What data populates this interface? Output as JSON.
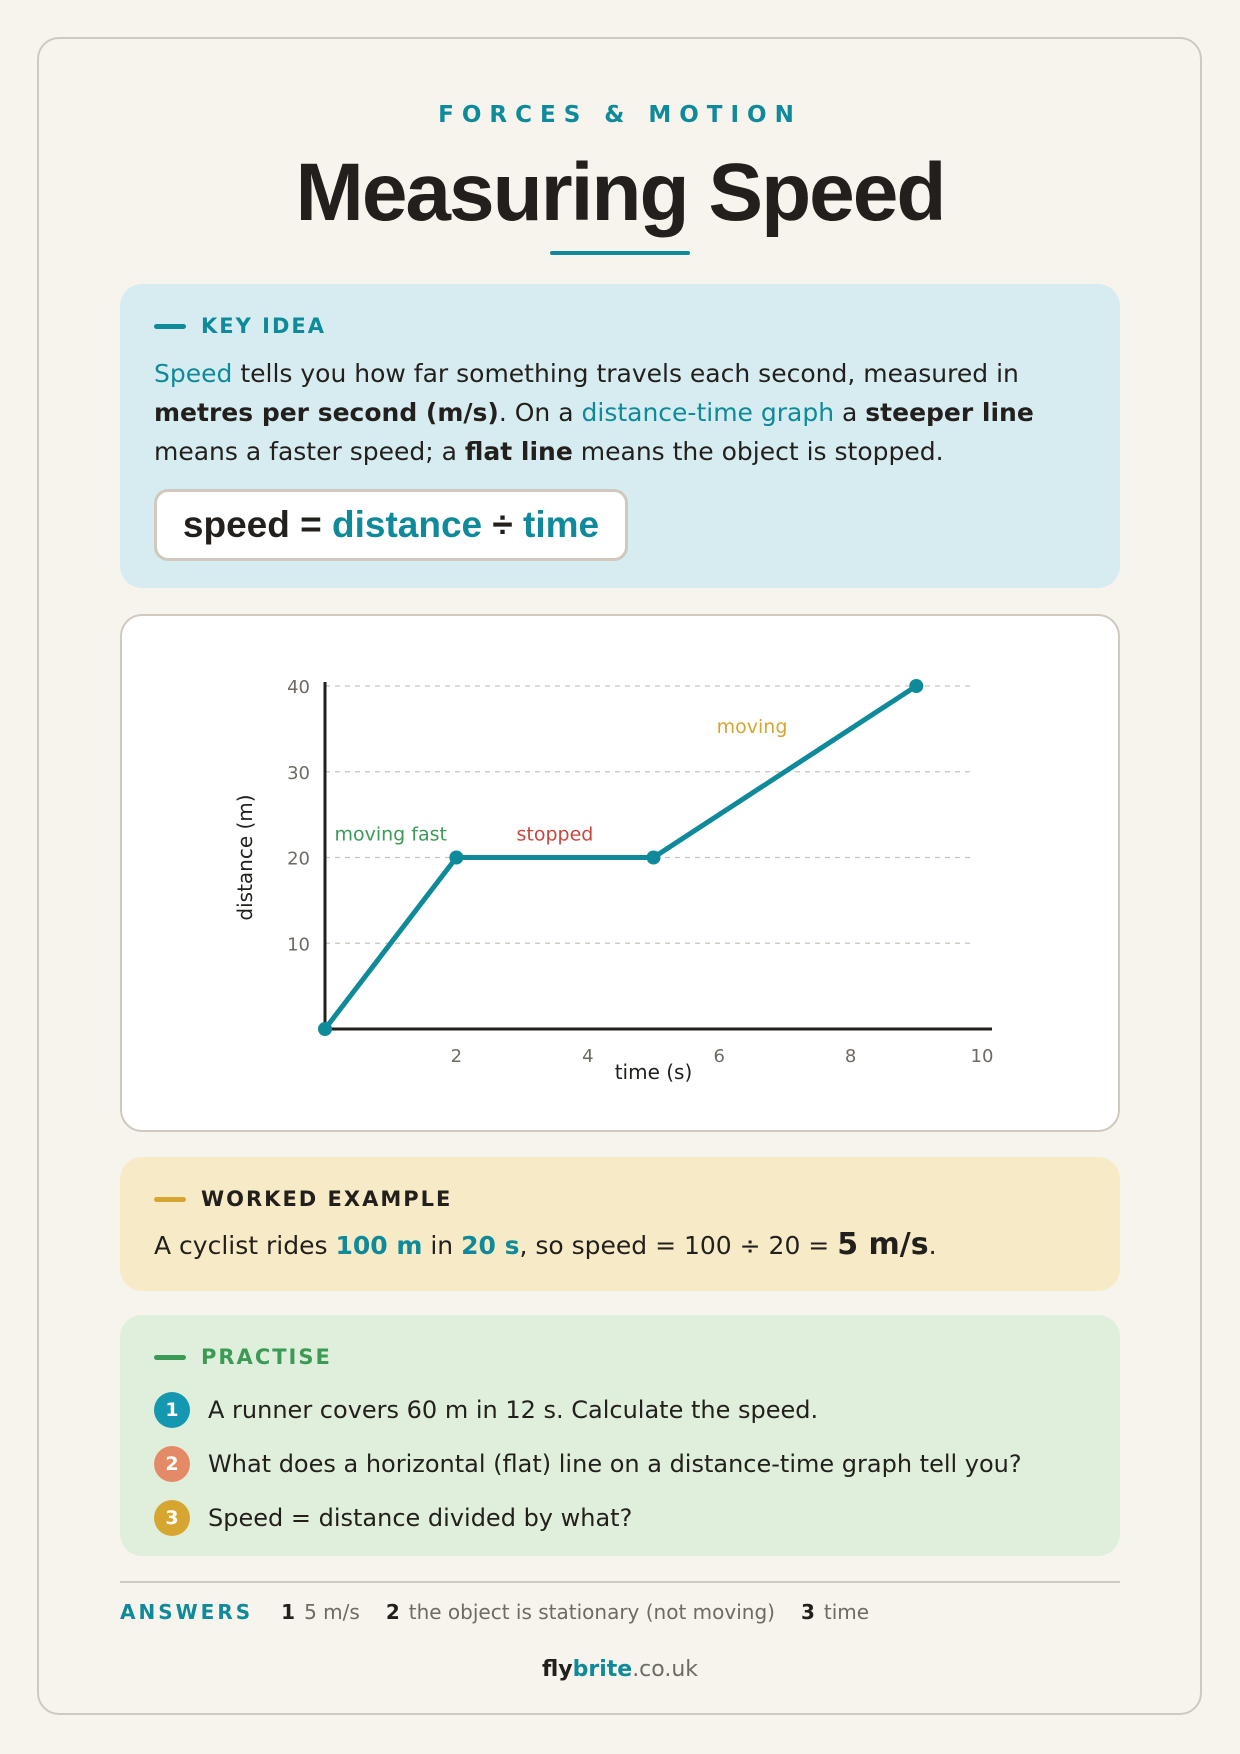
{
  "header": {
    "eyebrow": "FORCES & MOTION",
    "title": "Measuring Speed"
  },
  "key_idea": {
    "heading": "KEY IDEA",
    "text_parts": [
      "Speed",
      " tells you how far something travels each second, measured in ",
      "metres per second (m/s)",
      ". On a ",
      "distance-time graph",
      " a ",
      "steeper line",
      " means a faster speed; a ",
      "flat line",
      " means the object is stopped."
    ],
    "formula": {
      "left": "speed",
      "equals": " = ",
      "term1": "distance",
      "divide": " ÷ ",
      "term2": "time"
    }
  },
  "chart_data": {
    "type": "line",
    "xlabel": "time (s)",
    "ylabel": "distance (m)",
    "xlim": [
      0,
      10
    ],
    "ylim": [
      0,
      40
    ],
    "x_ticks": [
      2,
      4,
      6,
      8,
      10
    ],
    "y_ticks": [
      10,
      20,
      30,
      40
    ],
    "grid": "horizontal dashed",
    "series": [
      {
        "x": [
          0,
          2,
          5,
          9
        ],
        "y": [
          0,
          20,
          20,
          40
        ]
      }
    ],
    "annotations": [
      {
        "text": "moving fast",
        "x": 1,
        "y": 22,
        "color": "#3c9a57"
      },
      {
        "text": "stopped",
        "x": 3.5,
        "y": 22,
        "color": "#c9463d"
      },
      {
        "text": "moving",
        "x": 6.5,
        "y": 34.5,
        "color": "#d7a630"
      }
    ],
    "line_color": "#0e8a9a"
  },
  "worked_example": {
    "heading": "WORKED EXAMPLE",
    "pre": "A cyclist rides ",
    "distance": "100 m",
    "mid": " in ",
    "time": "20 s",
    "calc": ", so speed = 100 ÷ 20 = ",
    "answer": "5 m/s",
    "end": "."
  },
  "practise": {
    "heading": "PRACTISE",
    "questions": [
      {
        "num": "1",
        "text": "A runner covers 60 m in 12 s. Calculate the speed.",
        "color": "#1497b0"
      },
      {
        "num": "2",
        "text": "What does a horizontal (flat) line on a distance-time graph tell you?",
        "color": "#e58a66"
      },
      {
        "num": "3",
        "text": "Speed = distance divided by what?",
        "color": "#d7a630"
      }
    ]
  },
  "answers": {
    "label": "ANSWERS",
    "items": [
      {
        "num": "1",
        "text": "5 m/s"
      },
      {
        "num": "2",
        "text": "the object is stationary (not moving)"
      },
      {
        "num": "3",
        "text": "time"
      }
    ]
  },
  "brand": {
    "part1": "fly",
    "part2": "brite",
    "part3": ".co.uk"
  }
}
